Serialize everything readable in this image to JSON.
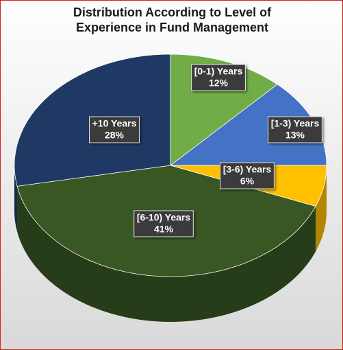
{
  "chart_data": {
    "type": "pie",
    "title": "Distribution According to Level of Experience in Fund Management",
    "categories": [
      "[0-1) Years",
      "[1-3) Years",
      "[3-6) Years",
      "[6-10) Years",
      "+10 Years"
    ],
    "values": [
      12,
      13,
      6,
      41,
      28
    ],
    "value_labels": [
      "12%",
      "13%",
      "6%",
      "41%",
      "28%"
    ],
    "colors": [
      "#70ad47",
      "#4472c4",
      "#ffc000",
      "#385723",
      "#203864"
    ]
  }
}
